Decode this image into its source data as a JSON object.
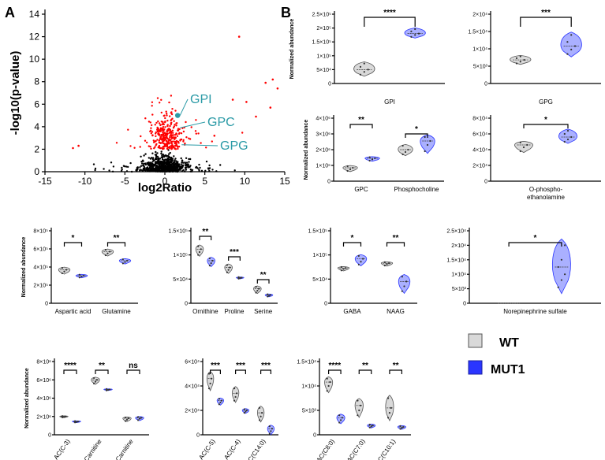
{
  "panels": {
    "a": "A",
    "b": "B"
  },
  "colors": {
    "wt": "#d9d9d9",
    "mut": "#aab0ff",
    "mut_edge": "#2a35ff",
    "sig_pts": "#ff0000",
    "ns_pts": "#000000",
    "ann": "#2a9aa6"
  },
  "legend": {
    "wt": "WT",
    "mut": "MUT1"
  },
  "chart_data": [
    {
      "id": "volcano",
      "type": "scatter",
      "xlabel": "log2Ratio",
      "ylabel": "-log10(p-value)",
      "xlim": [
        -15,
        15
      ],
      "ylim": [
        0,
        14
      ],
      "xticks": [
        "-15",
        "-10",
        "-5",
        "0",
        "5",
        "10",
        "15"
      ],
      "yticks": [
        "0",
        "2",
        "4",
        "6",
        "8",
        "10",
        "12",
        "14"
      ],
      "threshold": 2,
      "highlights": [
        {
          "name": "GPI",
          "x": 1.6,
          "y": 5.0
        },
        {
          "name": "GPC",
          "x": 1.6,
          "y": 3.9
        },
        {
          "name": "GPG",
          "x": 1.8,
          "y": 2.4
        }
      ]
    },
    {
      "id": "gpi-gpg",
      "type": "violin",
      "ylabel": "Normalized abundance",
      "facets": [
        {
          "title": "GPI",
          "ylim": [
            0,
            250000
          ],
          "yticks": [
            "0",
            "5×10⁴",
            "1×10⁵",
            "1.5×10⁵",
            "2×10⁵",
            "2.5×10⁵"
          ],
          "groups": [
            {
              "group": "WT",
              "values": [
                32000,
                42000,
                50000,
                60000,
                72000
              ]
            },
            {
              "group": "MUT1",
              "values": [
                168000,
                175000,
                180000,
                188000,
                196000
              ]
            }
          ],
          "comparisons": [
            {
              "label": "****"
            }
          ]
        },
        {
          "title": "GPG",
          "ylim": [
            0,
            20000
          ],
          "yticks": [
            "0",
            "5×10³",
            "1×10⁴",
            "1.5×10⁴",
            "2×10⁴"
          ],
          "groups": [
            {
              "group": "WT",
              "values": [
                5800,
                6300,
                6800,
                7300,
                7800
              ]
            },
            {
              "group": "MUT1",
              "values": [
                8500,
                9800,
                10800,
                12000,
                14000
              ]
            }
          ],
          "comparisons": [
            {
              "label": "***"
            }
          ]
        }
      ]
    },
    {
      "id": "gpc-pc",
      "type": "violin",
      "ylabel": "Normalized abundance",
      "ylim": [
        0,
        4000000
      ],
      "yticks": [
        "0",
        "1×10⁶",
        "2×10⁶",
        "3×10⁶",
        "4×10⁶"
      ],
      "categories": [
        {
          "name": "GPC",
          "wt": [
            650000,
            750000,
            850000,
            950000
          ],
          "mut": [
            1300000,
            1380000,
            1450000,
            1520000
          ]
        },
        {
          "name": "Phosphocholine",
          "wt": [
            1700000,
            1850000,
            2000000,
            2250000
          ],
          "mut": [
            1900000,
            2300000,
            2550000,
            2800000
          ]
        }
      ],
      "comparisons": [
        "**",
        "*"
      ]
    },
    {
      "id": "opea",
      "type": "violin",
      "ylim": [
        0,
        80000
      ],
      "yticks": [
        "0",
        "2×10⁴",
        "4×10⁴",
        "6×10⁴",
        "8×10⁴"
      ],
      "categories": [
        {
          "name": "O-phospho-ethanolamine",
          "label_lines": [
            "O-phospho-",
            "ethanolamine"
          ],
          "wt": [
            38000,
            43000,
            46000,
            49000
          ],
          "mut": [
            50000,
            53000,
            56000,
            60000,
            64000
          ]
        }
      ],
      "comparisons": [
        "*"
      ]
    },
    {
      "id": "aa1",
      "type": "violin",
      "ylabel": "Normalized abundance",
      "ylim": [
        0,
        800000
      ],
      "yticks": [
        "0",
        "2×10⁵",
        "4×10⁵",
        "6×10⁵",
        "8×10⁵"
      ],
      "categories": [
        {
          "name": "Aspartic acid",
          "wt": [
            330000,
            350000,
            370000,
            390000
          ],
          "mut": [
            285000,
            295000,
            305000,
            315000
          ]
        },
        {
          "name": "Glutamine",
          "wt": [
            530000,
            550000,
            570000,
            590000
          ],
          "mut": [
            440000,
            455000,
            470000,
            485000
          ]
        }
      ],
      "comparisons": [
        "*",
        "**"
      ]
    },
    {
      "id": "aa2",
      "type": "violin",
      "ylim": [
        0,
        150000
      ],
      "yticks": [
        "0",
        "5×10⁴",
        "1×10⁵",
        "1.5×10⁵"
      ],
      "categories": [
        {
          "name": "Ornithine",
          "wt": [
            100000,
            106000,
            112000,
            118000
          ],
          "mut": [
            78000,
            83000,
            88000,
            93000
          ]
        },
        {
          "name": "Proline",
          "wt": [
            64000,
            69000,
            74000,
            79000
          ],
          "mut": [
            51000,
            52000,
            53000,
            54000
          ]
        },
        {
          "name": "Serine",
          "wt": [
            22000,
            26000,
            30000,
            34000
          ],
          "mut": [
            14000,
            15500,
            17000,
            18500
          ]
        }
      ],
      "comparisons": [
        "**",
        "***",
        "**"
      ]
    },
    {
      "id": "aa3",
      "type": "violin",
      "ylim": [
        0,
        150000
      ],
      "yticks": [
        "0",
        "5×10⁴",
        "1×10⁵",
        "1.5×10⁵"
      ],
      "categories": [
        {
          "name": "GABA",
          "wt": [
            68000,
            71000,
            73000,
            75000
          ],
          "mut": [
            80000,
            86000,
            92000,
            98000
          ]
        },
        {
          "name": "NAAG",
          "wt": [
            78000,
            81000,
            83000,
            85000
          ],
          "mut": [
            25000,
            35000,
            45000,
            55000
          ]
        }
      ],
      "comparisons": [
        "*",
        "**"
      ]
    },
    {
      "id": "nes",
      "type": "violin",
      "ylim": [
        0,
        25000
      ],
      "yticks": [
        "0",
        "5×10³",
        "1×10⁴",
        "1.5×10⁴",
        "2×10⁴",
        "2.5×10⁴"
      ],
      "categories": [
        {
          "name": "Norepinephrine sulfate",
          "wt": [
            0,
            0,
            0,
            0
          ],
          "mut": [
            5500,
            8000,
            10000,
            12500,
            15000,
            20000
          ]
        }
      ],
      "comparisons": [
        "*"
      ]
    },
    {
      "id": "ac1",
      "type": "violin",
      "ylabel": "Normalized abundance",
      "ylim": [
        0,
        8000000
      ],
      "yticks": [
        "0",
        "2×10⁶",
        "4×10⁶",
        "6×10⁶",
        "8×10⁶"
      ],
      "categories": [
        {
          "name": "AC(C-3)",
          "wt": [
            1900000,
            1950000,
            2000000,
            2050000
          ],
          "mut": [
            1350000,
            1400000,
            1450000,
            1500000
          ]
        },
        {
          "name": "Carnitine",
          "wt": [
            5600000,
            5800000,
            6000000,
            6200000
          ],
          "mut": [
            4850000,
            4900000,
            4950000,
            5000000
          ]
        },
        {
          "name": "Acetyl-Carnitine",
          "wt": [
            1500000,
            1650000,
            1800000,
            1900000
          ],
          "mut": [
            1600000,
            1750000,
            1850000,
            1950000
          ]
        }
      ],
      "comparisons": [
        "****",
        "**",
        "ns"
      ]
    },
    {
      "id": "ac2",
      "type": "violin",
      "ylim": [
        0,
        60000
      ],
      "yticks": [
        "0",
        "2×10⁴",
        "4×10⁴",
        "6×10⁴"
      ],
      "categories": [
        {
          "name": "AC(C-5)",
          "wt": [
            38000,
            42000,
            46000,
            50000
          ],
          "mut": [
            25000,
            26500,
            28000,
            29500
          ]
        },
        {
          "name": "AC(C-4)",
          "wt": [
            28000,
            31000,
            34000,
            38000
          ],
          "mut": [
            18000,
            19000,
            20000,
            21000
          ]
        },
        {
          "name": "AC(C14:0)",
          "wt": [
            12000,
            15000,
            18000,
            22000
          ],
          "mut": [
            1000,
            3000,
            5000,
            7000
          ]
        }
      ],
      "comparisons": [
        "***",
        "***",
        "***"
      ]
    },
    {
      "id": "ac3",
      "type": "violin",
      "ylim": [
        0,
        15000
      ],
      "yticks": [
        "0",
        "5×10³",
        "1×10⁴",
        "1.5×10⁴"
      ],
      "categories": [
        {
          "name": "AC(C8:0)",
          "wt": [
            9000,
            10000,
            10800,
            11500
          ],
          "mut": [
            2500,
            3000,
            3500,
            4000
          ]
        },
        {
          "name": "AC(C7:0)",
          "wt": [
            4000,
            5000,
            6000,
            7000
          ],
          "mut": [
            1500,
            1700,
            1900,
            2100
          ]
        },
        {
          "name": "AC(C10:1)",
          "wt": [
            3500,
            4500,
            5500,
            7500
          ],
          "mut": [
            1200,
            1400,
            1600,
            1800
          ]
        }
      ],
      "comparisons": [
        "****",
        "**",
        "**"
      ]
    }
  ]
}
